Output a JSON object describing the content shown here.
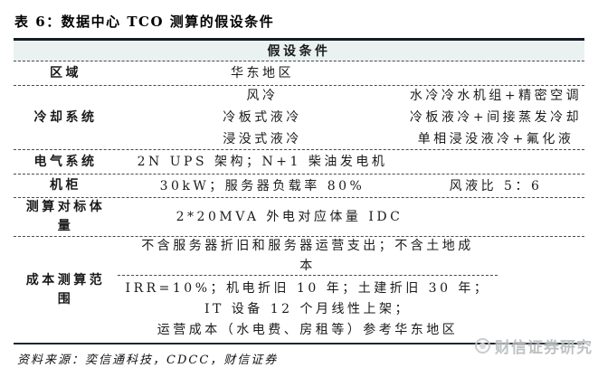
{
  "title": "表 6：数据中心 TCO 测算的假设条件",
  "table": {
    "header": "假设条件",
    "rows": [
      {
        "label": "区域",
        "mid": [
          "华东地区"
        ],
        "right": []
      },
      {
        "label": "冷却系统",
        "mid": [
          "风冷",
          "冷板式液冷",
          "浸没式液冷"
        ],
        "right": [
          "水冷冷水机组+精密空调",
          "冷板液冷+间接蒸发冷却",
          "单相浸没液冷+氟化液"
        ]
      },
      {
        "label": "电气系统",
        "mid": [
          "2N UPS 架构；N+1 柴油发电机"
        ],
        "right": []
      },
      {
        "label": "机柜",
        "mid": [
          "30kW；服务器负载率 80%"
        ],
        "right": [
          "风液比 5：6"
        ]
      },
      {
        "label": "测算对标体量",
        "merged": [
          "2*20MVA 外电对应体量 IDC"
        ]
      },
      {
        "label": "成本测算范围",
        "sections": [
          [
            "不含服务器折旧和服务器运营支出；不含土地成本"
          ],
          [
            "IRR=10%；机电折旧 10 年；土建折旧 30 年；",
            "IT 设备 12 个月线性上架；",
            "运营成本（水电费、房租等）参考华东地区"
          ]
        ]
      }
    ]
  },
  "footer": {
    "source": "资料来源：奕信通科技，CDCC，财信证券"
  },
  "watermark": {
    "text": "财信证券研究"
  },
  "colors": {
    "header_bg": "#eaf2f1",
    "border_dark": "#151c26",
    "dashed": "#4a4a4a",
    "watermark_gray": "#b7bcbc"
  }
}
